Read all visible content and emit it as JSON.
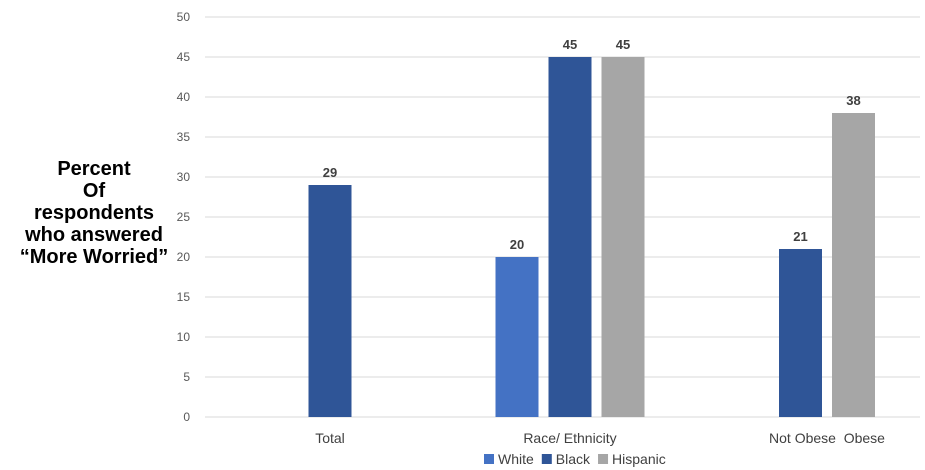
{
  "chart_data": {
    "type": "bar",
    "ylabel_lines": [
      "Percent",
      "Of",
      "respondents",
      "who answered",
      "“More Worried”"
    ],
    "ylim": [
      0,
      50
    ],
    "yticks": [
      0,
      5,
      10,
      15,
      20,
      25,
      30,
      35,
      40,
      45,
      50
    ],
    "grid": true,
    "legend_position": "bottom",
    "groups": [
      {
        "label": "Total",
        "bars": [
          {
            "series": "Black",
            "value": 29
          }
        ]
      },
      {
        "label": "Race/ Ethnicity",
        "bars": [
          {
            "series": "White",
            "value": 20
          },
          {
            "series": "Black",
            "value": 45
          },
          {
            "series": "Hispanic",
            "value": 45
          }
        ]
      },
      {
        "label": "Not Obese  Obese",
        "bars": [
          {
            "series": "Black",
            "value": 21
          },
          {
            "series": "Hispanic",
            "value": 38
          }
        ]
      }
    ],
    "legend": [
      {
        "name": "White",
        "color": "#4472c4"
      },
      {
        "name": "Black",
        "color": "#2f5597"
      },
      {
        "name": "Hispanic",
        "color": "#a6a6a6"
      }
    ]
  }
}
